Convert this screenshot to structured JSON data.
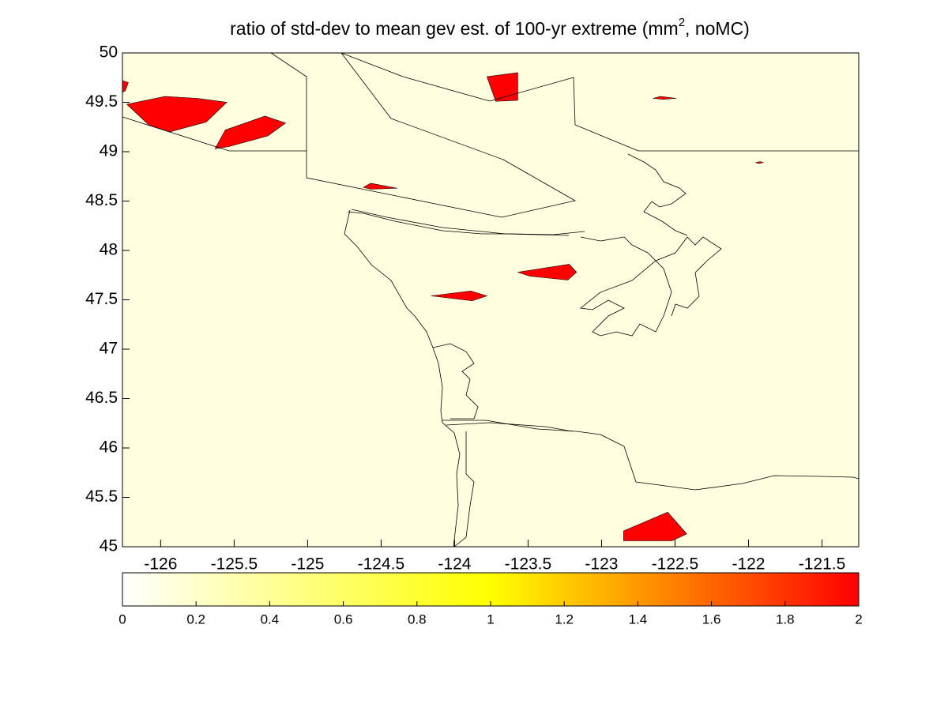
{
  "chart_data": {
    "type": "map",
    "title": [
      "ratio of std-dev to mean gev est. of 100-yr extreme (mm",
      "2",
      ", noMC)"
    ],
    "xlim": [
      -126.26,
      -121.25
    ],
    "ylim": [
      45,
      50
    ],
    "xticks": [
      -126,
      -125.5,
      -125,
      -124.5,
      -124,
      -123.5,
      -123,
      -122.5,
      -122,
      -121.5
    ],
    "yticks": [
      45,
      45.5,
      46,
      46.5,
      47,
      47.5,
      48,
      48.5,
      49,
      49.5,
      50
    ],
    "background": "#ffffe0",
    "patch_color": "#ff0000",
    "patches": [
      {
        "lon": [
          -126.26,
          -126.22,
          -126.24,
          -126.26
        ],
        "lat": [
          49.72,
          49.7,
          49.62,
          49.6
        ]
      },
      {
        "lon": [
          -126.23,
          -125.97,
          -125.75,
          -125.55,
          -125.69,
          -125.94,
          -126.08
        ],
        "lat": [
          49.48,
          49.56,
          49.54,
          49.5,
          49.3,
          49.2,
          49.27
        ]
      },
      {
        "lon": [
          -125.63,
          -125.56,
          -125.29,
          -125.15,
          -125.27,
          -125.54
        ],
        "lat": [
          49.03,
          49.22,
          49.36,
          49.29,
          49.16,
          49.05
        ]
      },
      {
        "lon": [
          -123.78,
          -123.57,
          -123.57,
          -123.72
        ],
        "lat": [
          49.76,
          49.8,
          49.52,
          49.51
        ]
      },
      {
        "lon": [
          -122.65,
          -122.6,
          -122.49,
          -122.58
        ],
        "lat": [
          49.54,
          49.56,
          49.54,
          49.53
        ]
      },
      {
        "lon": [
          -121.95,
          -121.92,
          -121.9,
          -121.93
        ],
        "lat": [
          48.89,
          48.9,
          48.89,
          48.88
        ]
      },
      {
        "lon": [
          -124.62,
          -124.57,
          -124.39,
          -124.57
        ],
        "lat": [
          48.64,
          48.68,
          48.63,
          48.62
        ]
      },
      {
        "lon": [
          -123.57,
          -123.22,
          -123.17,
          -123.23,
          -123.49
        ],
        "lat": [
          47.78,
          47.86,
          47.78,
          47.7,
          47.74
        ]
      },
      {
        "lon": [
          -124.16,
          -123.89,
          -123.78,
          -123.88
        ],
        "lat": [
          47.54,
          47.59,
          47.54,
          47.49
        ]
      },
      {
        "lon": [
          -122.85,
          -122.55,
          -122.42,
          -122.52,
          -122.85
        ],
        "lat": [
          45.16,
          45.35,
          45.13,
          45.06,
          45.06
        ]
      }
    ],
    "colorbar": {
      "lim": [
        0,
        2
      ],
      "ticks": [
        0,
        0.2,
        0.4,
        0.6,
        0.8,
        1,
        1.2,
        1.4,
        1.6,
        1.8,
        2
      ],
      "colormap": [
        "#ffffff",
        "#ffff00",
        "#ff0000"
      ]
    }
  }
}
